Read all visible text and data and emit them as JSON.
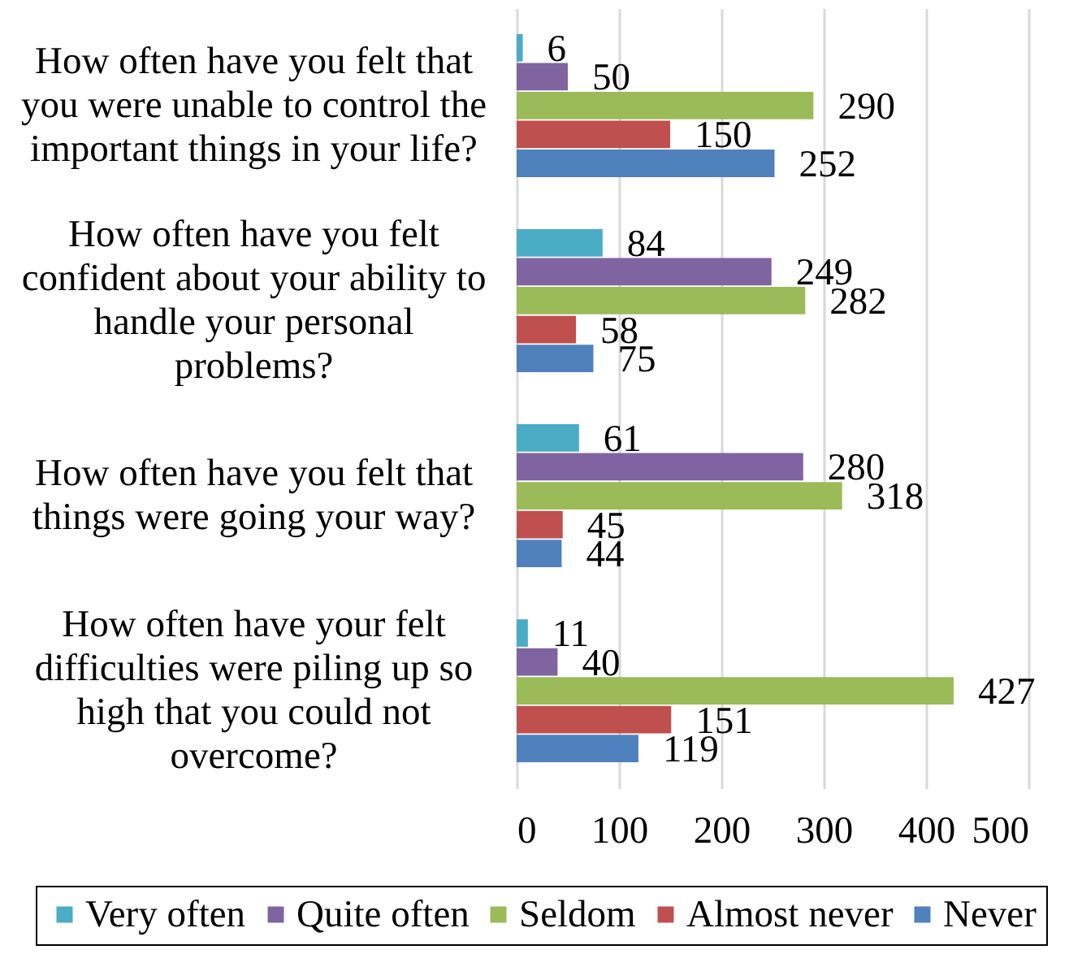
{
  "chart_data": {
    "type": "bar",
    "orientation": "horizontal",
    "categories": [
      "How often have you felt that you were unable to control the important things in your life?",
      "How often have you felt confident about your ability to handle your personal problems?",
      "How often have you felt that things were going your way?",
      "How often have your felt difficulties were piling up so high that you could not overcome?"
    ],
    "series": [
      {
        "name": "Very often",
        "color": "#4bacc6",
        "values": [
          6,
          84,
          61,
          11
        ]
      },
      {
        "name": "Quite often",
        "color": "#8064a2",
        "values": [
          50,
          249,
          280,
          40
        ]
      },
      {
        "name": "Seldom",
        "color": "#9bbb59",
        "values": [
          290,
          282,
          318,
          427
        ]
      },
      {
        "name": "Almost never",
        "color": "#c0504d",
        "values": [
          150,
          58,
          45,
          151
        ]
      },
      {
        "name": "Never",
        "color": "#4f81bd",
        "values": [
          252,
          75,
          44,
          119
        ]
      }
    ],
    "xlim": [
      0,
      500
    ],
    "xticks": [
      0,
      100,
      200,
      300,
      400,
      500
    ],
    "grid": "x",
    "legend": "bottom",
    "data_labels": true
  }
}
